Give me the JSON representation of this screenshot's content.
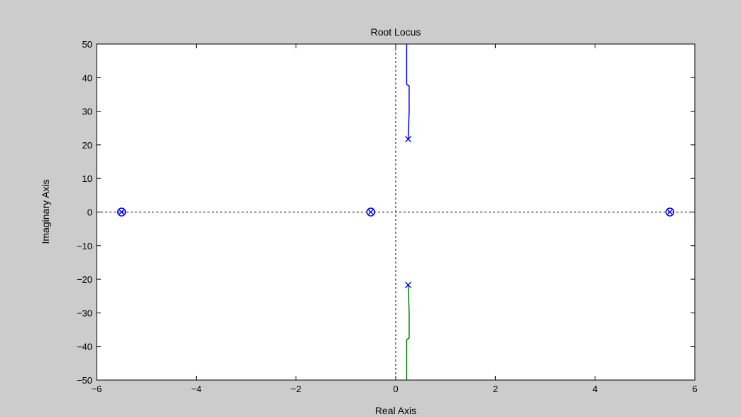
{
  "chart_data": {
    "type": "scatter",
    "title": "Root Locus",
    "xlabel": "Real Axis",
    "ylabel": "Imaginary Axis",
    "xlim": [
      -6,
      6
    ],
    "ylim": [
      -50,
      50
    ],
    "xticks": [
      -6,
      -4,
      -2,
      0,
      2,
      4,
      6
    ],
    "yticks": [
      -50,
      -40,
      -30,
      -20,
      -10,
      0,
      10,
      20,
      30,
      40,
      50
    ],
    "grid": false,
    "reference_lines": {
      "x": 0,
      "y": 0,
      "style": "dashed"
    },
    "series": [
      {
        "kind": "locus-branch",
        "color": "#0000ff",
        "points": [
          [
            0.25,
            21.7
          ],
          [
            0.27,
            30
          ],
          [
            0.27,
            37.5
          ],
          [
            0.22,
            38
          ],
          [
            0.22,
            50
          ]
        ]
      },
      {
        "kind": "locus-branch",
        "color": "#008000",
        "points": [
          [
            0.25,
            -21.7
          ],
          [
            0.27,
            -30
          ],
          [
            0.27,
            -37.5
          ],
          [
            0.22,
            -38
          ],
          [
            0.22,
            -50
          ]
        ]
      }
    ],
    "poles": [
      {
        "x": 0.25,
        "y": 21.7
      },
      {
        "x": 0.25,
        "y": -21.7
      },
      {
        "x": -5.5,
        "y": 0
      },
      {
        "x": -0.5,
        "y": 0
      },
      {
        "x": 5.5,
        "y": 0
      }
    ],
    "zeros": [
      {
        "x": -5.5,
        "y": 0
      },
      {
        "x": -0.5,
        "y": 0
      },
      {
        "x": 5.5,
        "y": 0
      }
    ],
    "marker_color": "#0000ff"
  }
}
